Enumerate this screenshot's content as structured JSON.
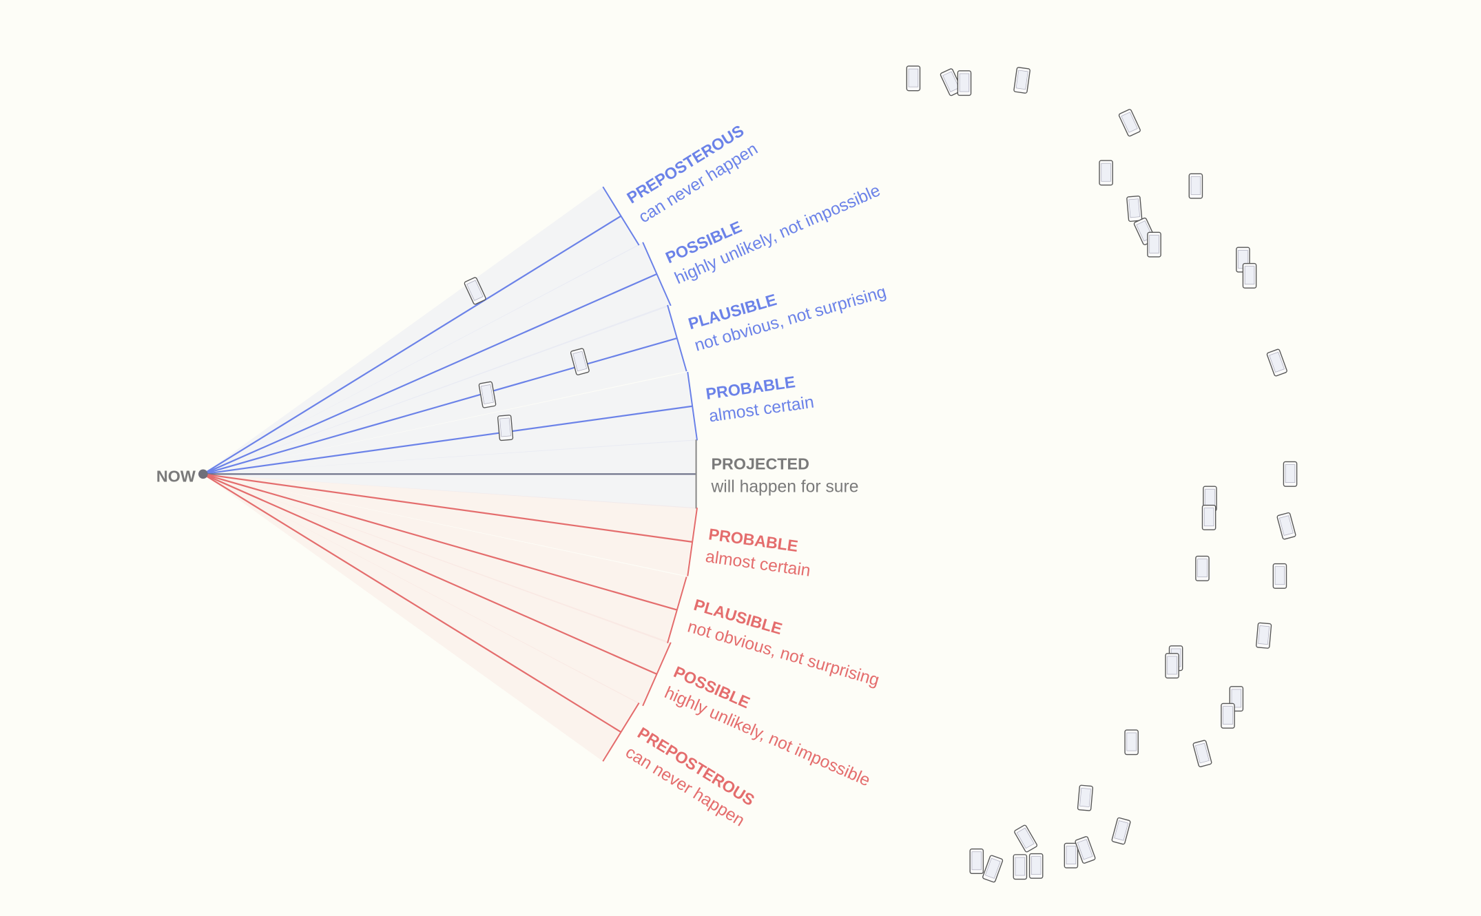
{
  "now": "NOW",
  "futures": [
    {
      "title": "PREPOSTEROUS",
      "subtitle": "can never happen"
    },
    {
      "title": "POSSIBLE",
      "subtitle": "highly unlikely, not impossible"
    },
    {
      "title": "PLAUSIBLE",
      "subtitle": "not obvious, not surprising"
    },
    {
      "title": "PROBABLE",
      "subtitle": "almost certain"
    },
    {
      "title": "PROJECTED",
      "subtitle": "will happen for sure"
    },
    {
      "title": "PROBABLE",
      "subtitle": "almost certain"
    },
    {
      "title": "PLAUSIBLE",
      "subtitle": "not obvious, not surprising"
    },
    {
      "title": "POSSIBLE",
      "subtitle": "highly unlikely, not impossible"
    },
    {
      "title": "PREPOSTEROUS",
      "subtitle": "can never happen"
    }
  ]
}
